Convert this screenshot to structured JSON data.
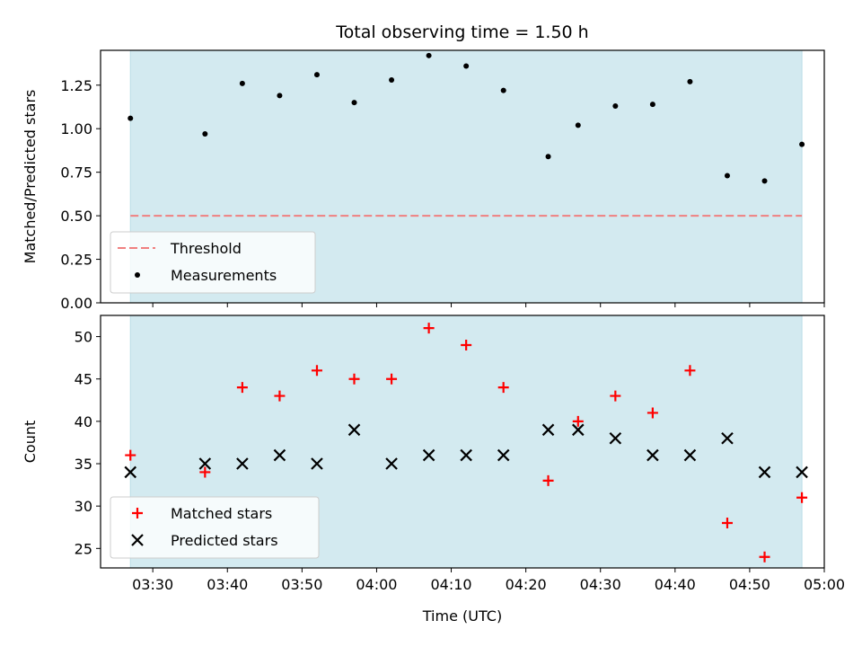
{
  "chart_data": [
    {
      "type": "scatter",
      "title": "Total observing time = 1.50 h",
      "xlabel": "",
      "ylabel": "Matched/Predicted stars",
      "xlim": [
        "03:23",
        "05:00"
      ],
      "ylim": [
        0,
        1.45
      ],
      "grid": false,
      "legend_position": "lower-left",
      "x_ticks": [
        "03:30",
        "03:40",
        "03:50",
        "04:00",
        "04:10",
        "04:20",
        "04:30",
        "04:40",
        "04:50",
        "05:00"
      ],
      "y_ticks": [
        "0.00",
        "0.25",
        "0.50",
        "0.75",
        "1.00",
        "1.25"
      ],
      "shaded_span": {
        "start": "03:27",
        "end": "04:57",
        "color": "#d3eaf0"
      },
      "threshold": {
        "name": "Threshold",
        "value": 0.5,
        "color": "#f08080",
        "style": "dashed"
      },
      "series": [
        {
          "name": "Measurements",
          "marker": "dot",
          "color": "#000000",
          "x": [
            "03:27",
            "03:37",
            "03:42",
            "03:47",
            "03:52",
            "03:57",
            "04:02",
            "04:07",
            "04:12",
            "04:17",
            "04:23",
            "04:27",
            "04:32",
            "04:37",
            "04:42",
            "04:47",
            "04:52",
            "04:57"
          ],
          "values": [
            1.06,
            0.97,
            1.26,
            1.19,
            1.31,
            1.15,
            1.28,
            1.42,
            1.36,
            1.22,
            0.84,
            1.02,
            1.13,
            1.14,
            1.27,
            0.73,
            0.7,
            0.91
          ]
        }
      ]
    },
    {
      "type": "scatter",
      "title": "",
      "xlabel": "Time (UTC)",
      "ylabel": "Count",
      "xlim": [
        "03:23",
        "05:00"
      ],
      "ylim": [
        22.7,
        52.5
      ],
      "grid": false,
      "legend_position": "lower-left",
      "x_ticks": [
        "03:30",
        "03:40",
        "03:50",
        "04:00",
        "04:10",
        "04:20",
        "04:30",
        "04:40",
        "04:50",
        "05:00"
      ],
      "y_ticks": [
        "25",
        "30",
        "35",
        "40",
        "45",
        "50"
      ],
      "shaded_span": {
        "start": "03:27",
        "end": "04:57",
        "color": "#d3eaf0"
      },
      "series": [
        {
          "name": "Matched stars",
          "marker": "plus",
          "color": "#ff0000",
          "x": [
            "03:27",
            "03:37",
            "03:42",
            "03:47",
            "03:52",
            "03:57",
            "04:02",
            "04:07",
            "04:12",
            "04:17",
            "04:23",
            "04:27",
            "04:32",
            "04:37",
            "04:42",
            "04:47",
            "04:52",
            "04:57"
          ],
          "values": [
            36,
            34,
            44,
            43,
            46,
            45,
            45,
            51,
            49,
            44,
            33,
            40,
            43,
            41,
            46,
            28,
            24,
            31
          ]
        },
        {
          "name": "Predicted stars",
          "marker": "x",
          "color": "#000000",
          "x": [
            "03:27",
            "03:37",
            "03:42",
            "03:47",
            "03:52",
            "03:57",
            "04:02",
            "04:07",
            "04:12",
            "04:17",
            "04:23",
            "04:27",
            "04:32",
            "04:37",
            "04:42",
            "04:47",
            "04:52",
            "04:57"
          ],
          "values": [
            34,
            35,
            35,
            36,
            35,
            39,
            35,
            36,
            36,
            36,
            39,
            39,
            38,
            36,
            36,
            38,
            34,
            34
          ]
        }
      ]
    }
  ]
}
